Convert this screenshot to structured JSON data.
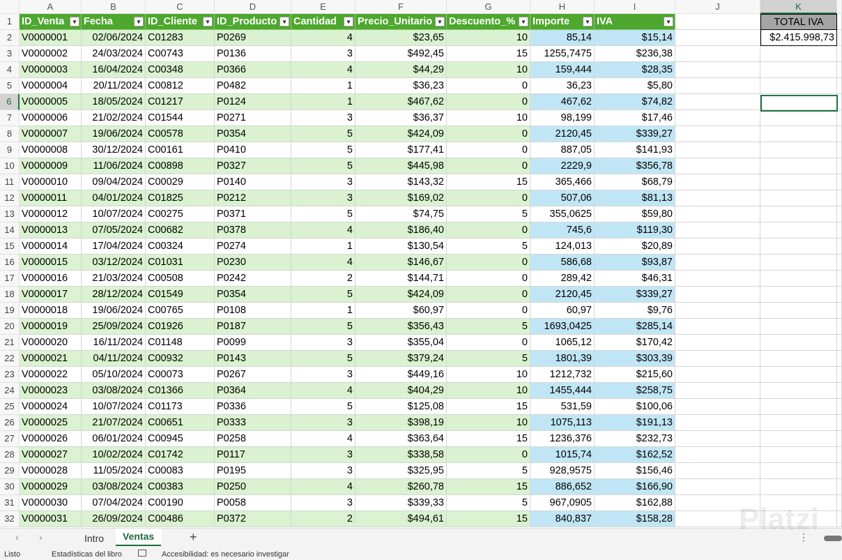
{
  "column_letters": [
    "A",
    "B",
    "C",
    "D",
    "E",
    "F",
    "G",
    "H",
    "I",
    "J",
    "K"
  ],
  "row_numbers": [
    1,
    2,
    3,
    4,
    5,
    6,
    7,
    8,
    9,
    10,
    11,
    12,
    13,
    14,
    15,
    16,
    17,
    18,
    19,
    20,
    21,
    22,
    23,
    24,
    25,
    26,
    27,
    28,
    29,
    30,
    31,
    32
  ],
  "table": {
    "headers": [
      "ID_Venta",
      "Fecha",
      "ID_Cliente",
      "ID_Producto",
      "Cantidad",
      "Precio_Unitario",
      "Descuento_%",
      "Importe",
      "IVA"
    ],
    "rows": [
      [
        "V0000001",
        "02/06/2024",
        "C01283",
        "P0269",
        "4",
        "$23,65",
        "10",
        "85,14",
        "$15,14"
      ],
      [
        "V0000002",
        "24/03/2024",
        "C00743",
        "P0136",
        "3",
        "$492,45",
        "15",
        "1255,7475",
        "$236,38"
      ],
      [
        "V0000003",
        "16/04/2024",
        "C00348",
        "P0366",
        "4",
        "$44,29",
        "10",
        "159,444",
        "$28,35"
      ],
      [
        "V0000004",
        "20/11/2024",
        "C00812",
        "P0482",
        "1",
        "$36,23",
        "0",
        "36,23",
        "$5,80"
      ],
      [
        "V0000005",
        "18/05/2024",
        "C01217",
        "P0124",
        "1",
        "$467,62",
        "0",
        "467,62",
        "$74,82"
      ],
      [
        "V0000006",
        "21/02/2024",
        "C01544",
        "P0271",
        "3",
        "$36,37",
        "10",
        "98,199",
        "$17,46"
      ],
      [
        "V0000007",
        "19/06/2024",
        "C00578",
        "P0354",
        "5",
        "$424,09",
        "0",
        "2120,45",
        "$339,27"
      ],
      [
        "V0000008",
        "30/12/2024",
        "C00161",
        "P0410",
        "5",
        "$177,41",
        "0",
        "887,05",
        "$141,93"
      ],
      [
        "V0000009",
        "11/06/2024",
        "C00898",
        "P0327",
        "5",
        "$445,98",
        "0",
        "2229,9",
        "$356,78"
      ],
      [
        "V0000010",
        "09/04/2024",
        "C00029",
        "P0140",
        "3",
        "$143,32",
        "15",
        "365,466",
        "$68,79"
      ],
      [
        "V0000011",
        "04/01/2024",
        "C01825",
        "P0212",
        "3",
        "$169,02",
        "0",
        "507,06",
        "$81,13"
      ],
      [
        "V0000012",
        "10/07/2024",
        "C00275",
        "P0371",
        "5",
        "$74,75",
        "5",
        "355,0625",
        "$59,80"
      ],
      [
        "V0000013",
        "07/05/2024",
        "C00682",
        "P0378",
        "4",
        "$186,40",
        "0",
        "745,6",
        "$119,30"
      ],
      [
        "V0000014",
        "17/04/2024",
        "C00324",
        "P0274",
        "1",
        "$130,54",
        "5",
        "124,013",
        "$20,89"
      ],
      [
        "V0000015",
        "03/12/2024",
        "C01031",
        "P0230",
        "4",
        "$146,67",
        "0",
        "586,68",
        "$93,87"
      ],
      [
        "V0000016",
        "21/03/2024",
        "C00508",
        "P0242",
        "2",
        "$144,71",
        "0",
        "289,42",
        "$46,31"
      ],
      [
        "V0000017",
        "28/12/2024",
        "C01549",
        "P0354",
        "5",
        "$424,09",
        "0",
        "2120,45",
        "$339,27"
      ],
      [
        "V0000018",
        "19/06/2024",
        "C00765",
        "P0108",
        "1",
        "$60,97",
        "0",
        "60,97",
        "$9,76"
      ],
      [
        "V0000019",
        "25/09/2024",
        "C01926",
        "P0187",
        "5",
        "$356,43",
        "5",
        "1693,0425",
        "$285,14"
      ],
      [
        "V0000020",
        "16/11/2024",
        "C01148",
        "P0099",
        "3",
        "$355,04",
        "0",
        "1065,12",
        "$170,42"
      ],
      [
        "V0000021",
        "04/11/2024",
        "C00932",
        "P0143",
        "5",
        "$379,24",
        "5",
        "1801,39",
        "$303,39"
      ],
      [
        "V0000022",
        "05/10/2024",
        "C00073",
        "P0267",
        "3",
        "$449,16",
        "10",
        "1212,732",
        "$215,60"
      ],
      [
        "V0000023",
        "03/08/2024",
        "C01366",
        "P0364",
        "4",
        "$404,29",
        "10",
        "1455,444",
        "$258,75"
      ],
      [
        "V0000024",
        "10/07/2024",
        "C01173",
        "P0336",
        "5",
        "$125,08",
        "15",
        "531,59",
        "$100,06"
      ],
      [
        "V0000025",
        "21/07/2024",
        "C00651",
        "P0333",
        "3",
        "$398,19",
        "10",
        "1075,113",
        "$191,13"
      ],
      [
        "V0000026",
        "06/01/2024",
        "C00945",
        "P0258",
        "4",
        "$363,64",
        "15",
        "1236,376",
        "$232,73"
      ],
      [
        "V0000027",
        "10/02/2024",
        "C01742",
        "P0117",
        "3",
        "$338,58",
        "0",
        "1015,74",
        "$162,52"
      ],
      [
        "V0000028",
        "11/05/2024",
        "C00083",
        "P0195",
        "3",
        "$325,95",
        "5",
        "928,9575",
        "$156,46"
      ],
      [
        "V0000029",
        "03/08/2024",
        "C00383",
        "P0250",
        "4",
        "$260,78",
        "15",
        "886,652",
        "$166,90"
      ],
      [
        "V0000030",
        "07/04/2024",
        "C00190",
        "P0058",
        "3",
        "$339,33",
        "5",
        "967,0905",
        "$162,88"
      ],
      [
        "V0000031",
        "26/09/2024",
        "C00486",
        "P0372",
        "2",
        "$494,61",
        "15",
        "840,837",
        "$158,28"
      ]
    ]
  },
  "summary": {
    "label": "TOTAL IVA",
    "value": "$2.415.998,73"
  },
  "sheet_tabs": [
    "Intro",
    "Ventas"
  ],
  "status_bar": {
    "ready": "Listo",
    "workbook_stats": "Estadísticas del libro",
    "accessibility": "Accesibilidad: es necesario investigar"
  },
  "watermark": "Platzi"
}
